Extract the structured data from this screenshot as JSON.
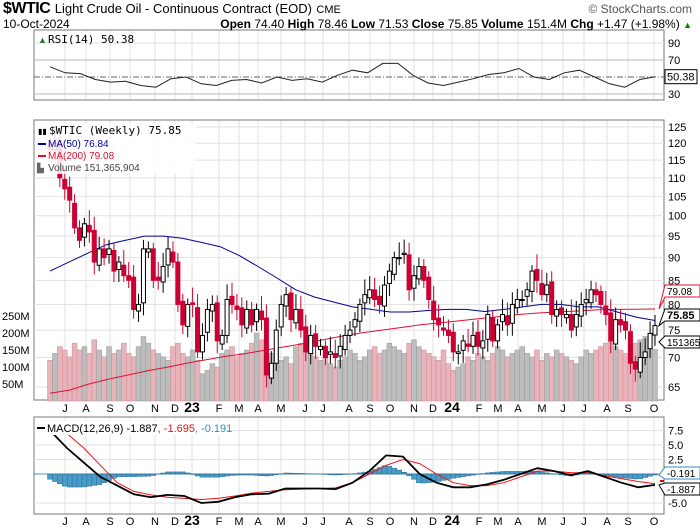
{
  "header": {
    "symbol": "$WTIC",
    "name": "Light Crude Oil - Continuous Contract (EOD)",
    "exchange": "CME",
    "copyright": "© StockCharts.com",
    "date": "10-Oct-2024",
    "open_label": "Open",
    "open": "74.40",
    "high_label": "High",
    "high": "78.46",
    "low_label": "Low",
    "low": "71.53",
    "close_label": "Close",
    "close": "75.85",
    "volume_label": "Volume",
    "volume": "151.4M",
    "chg_label": "Chg",
    "chg": "+1.47 (+1.98%)",
    "chg_arrow": "▲"
  },
  "colors": {
    "up": "#000000",
    "down": "#cc0033",
    "ma50": "#000099",
    "ma200": "#dd1133",
    "vol_down": "#e8b4bb",
    "vol_up": "#bdbdbd",
    "macd_hist": "#4a9cc8",
    "grid": "#e2e2e2",
    "chg": "#008800"
  },
  "chart_data": [
    {
      "type": "line",
      "title": "RSI(14) 50.38",
      "legend": "RSI(14) 50.38",
      "ylim": [
        10,
        100
      ],
      "yticks": [
        "90",
        "70",
        "30"
      ],
      "reference_lines": [
        70,
        50,
        30
      ],
      "last_value_tag": "50.38",
      "values": [
        62,
        55,
        54,
        47,
        44,
        45,
        40,
        38,
        48,
        50,
        42,
        40,
        46,
        47,
        43,
        50,
        46,
        48,
        44,
        52,
        58,
        55,
        66,
        66,
        52,
        43,
        40,
        44,
        48,
        53,
        55,
        60,
        50,
        47,
        55,
        58,
        50,
        42,
        38,
        47,
        50.38
      ]
    },
    {
      "type": "candlestick",
      "title": "$WTIC (Weekly) 75.85",
      "scale": "log",
      "ylim": [
        62,
        127
      ],
      "yticks": [
        "125",
        "120",
        "115",
        "110",
        "105",
        "100",
        "95",
        "90",
        "85",
        "80",
        "75",
        "70",
        "65"
      ],
      "vol_ticks": [
        "250M",
        "200M",
        "150M",
        "100M",
        "50M"
      ],
      "legend": [
        {
          "label": "$WTIC (Weekly) 75.85"
        },
        {
          "label": "MA(50) 76.84"
        },
        {
          "label": "MA(200) 79.08"
        },
        {
          "label": "Volume 151,365,904"
        }
      ],
      "tags": {
        "ma200": "79.08",
        "ma50": "76.84",
        "close": "75.85",
        "volume": "151365"
      },
      "x_labels": [
        "J",
        "A",
        "S",
        "O",
        "N",
        "D",
        "23",
        "F",
        "M",
        "A",
        "M",
        "J",
        "J",
        "A",
        "S",
        "O",
        "N",
        "D",
        "24",
        "F",
        "M",
        "A",
        "M",
        "J",
        "J",
        "A",
        "S",
        "O"
      ],
      "close": [
        118,
        120,
        110,
        107,
        104,
        97,
        94,
        98,
        96,
        89,
        92,
        90,
        92,
        87,
        89,
        86,
        85,
        79,
        80,
        92,
        92,
        85,
        85,
        88,
        92,
        89,
        80,
        76,
        80,
        80,
        71,
        74,
        79,
        80,
        73,
        74,
        81,
        80,
        79,
        76,
        79,
        76,
        79,
        77,
        67,
        69,
        75,
        80,
        82,
        77,
        79,
        75,
        71,
        74,
        72,
        72,
        70,
        71,
        70,
        72,
        74,
        75,
        77,
        80,
        82,
        83,
        81,
        80,
        84,
        87,
        90,
        90,
        91,
        83,
        86,
        88,
        85,
        81,
        77,
        76,
        75,
        74,
        71,
        71,
        73,
        72,
        74,
        72,
        73,
        78,
        73,
        76,
        78,
        76,
        80,
        81,
        81,
        83,
        87,
        85,
        82,
        84,
        78,
        79,
        78,
        78,
        75,
        78,
        80,
        81,
        83,
        82,
        80,
        78,
        73,
        77,
        76,
        75,
        69,
        68,
        70,
        71,
        74.38,
        75.85
      ],
      "volume_millions": [
        120,
        140,
        160,
        150,
        130,
        170,
        150,
        160,
        140,
        180,
        150,
        130,
        160,
        140,
        150,
        170,
        140,
        130,
        160,
        190,
        170,
        150,
        140,
        130,
        120,
        160,
        170,
        140,
        130,
        150,
        120,
        80,
        90,
        110,
        100,
        140,
        150,
        160,
        130,
        140,
        150,
        170,
        200,
        180,
        130,
        140,
        150,
        120,
        130,
        110,
        160,
        170,
        150,
        140,
        130,
        120,
        140,
        110,
        100,
        120,
        130,
        150,
        140,
        120,
        130,
        150,
        160,
        140,
        150,
        170,
        160,
        150,
        140,
        170,
        180,
        160,
        150,
        140,
        130,
        120,
        150,
        110,
        90,
        100,
        110,
        130,
        120,
        140,
        130,
        120,
        140,
        160,
        150,
        130,
        140,
        150,
        160,
        140,
        130,
        150,
        120,
        140,
        130,
        150,
        140,
        130,
        120,
        110,
        130,
        150,
        140,
        150,
        160,
        170,
        180,
        160,
        150,
        140,
        130,
        170,
        180,
        190,
        160,
        151.4
      ],
      "ma50": [
        87,
        89,
        91,
        93,
        94,
        95,
        95,
        94.5,
        93.5,
        92.5,
        90.5,
        88,
        85.5,
        83,
        81.5,
        80.5,
        79.5,
        79,
        78.5,
        78.5,
        78.8,
        79,
        79,
        78.6,
        79,
        79.5,
        80,
        80,
        79.5,
        79.5,
        78.5,
        77.5,
        76.84
      ],
      "ma200": [
        64,
        64.5,
        65.5,
        66.3,
        67,
        67.7,
        68.3,
        69,
        69.6,
        70.2,
        70.7,
        71.3,
        71.9,
        72.5,
        73.2,
        73.9,
        74.5,
        75,
        75.5,
        76,
        76.4,
        76.8,
        77.2,
        77.6,
        78,
        78.3,
        78.5,
        78.7,
        78.9,
        79.0,
        79.05,
        79.08
      ]
    },
    {
      "type": "line",
      "title": "MACD(12,26,9) -1.887, -1.695, -0.191",
      "legend": {
        "macd": "MACD(12,26,9) -1.887",
        "signal": ", -1.695",
        "hist": ", -0.191"
      },
      "ylim": [
        -6.5,
        9.5
      ],
      "yticks": [
        "7.5",
        "5.0",
        "2.5",
        "-5.0"
      ],
      "tags": {
        "hist": "-0.191",
        "macd": "-1.887"
      },
      "macd": [
        7.5,
        4.5,
        2,
        -0.5,
        -2,
        -3.5,
        -4,
        -3.6,
        -3.8,
        -5,
        -4.8,
        -4,
        -3.5,
        -3.4,
        -2.5,
        -2.5,
        -2.5,
        -2.6,
        -1.5,
        0.5,
        3.2,
        3,
        0,
        -1.5,
        -2.3,
        -2.3,
        -1.8,
        -1,
        0,
        1.0,
        0.5,
        -0.2,
        0.5,
        -0.5,
        -1.5,
        -2.3,
        -1.887
      ],
      "signal": [
        8.5,
        7,
        4.5,
        1.5,
        -1.5,
        -3,
        -3.6,
        -4,
        -4.2,
        -4.4,
        -4.2,
        -3.8,
        -3.3,
        -3,
        -2.7,
        -2.6,
        -2.5,
        -2.4,
        -1.5,
        0,
        1.5,
        2.5,
        1.8,
        0,
        -1.5,
        -2,
        -2,
        -1.5,
        -0.5,
        0.5,
        0.5,
        0.2,
        0.2,
        -0.3,
        -0.8,
        -1.3,
        -1.695
      ]
    }
  ]
}
